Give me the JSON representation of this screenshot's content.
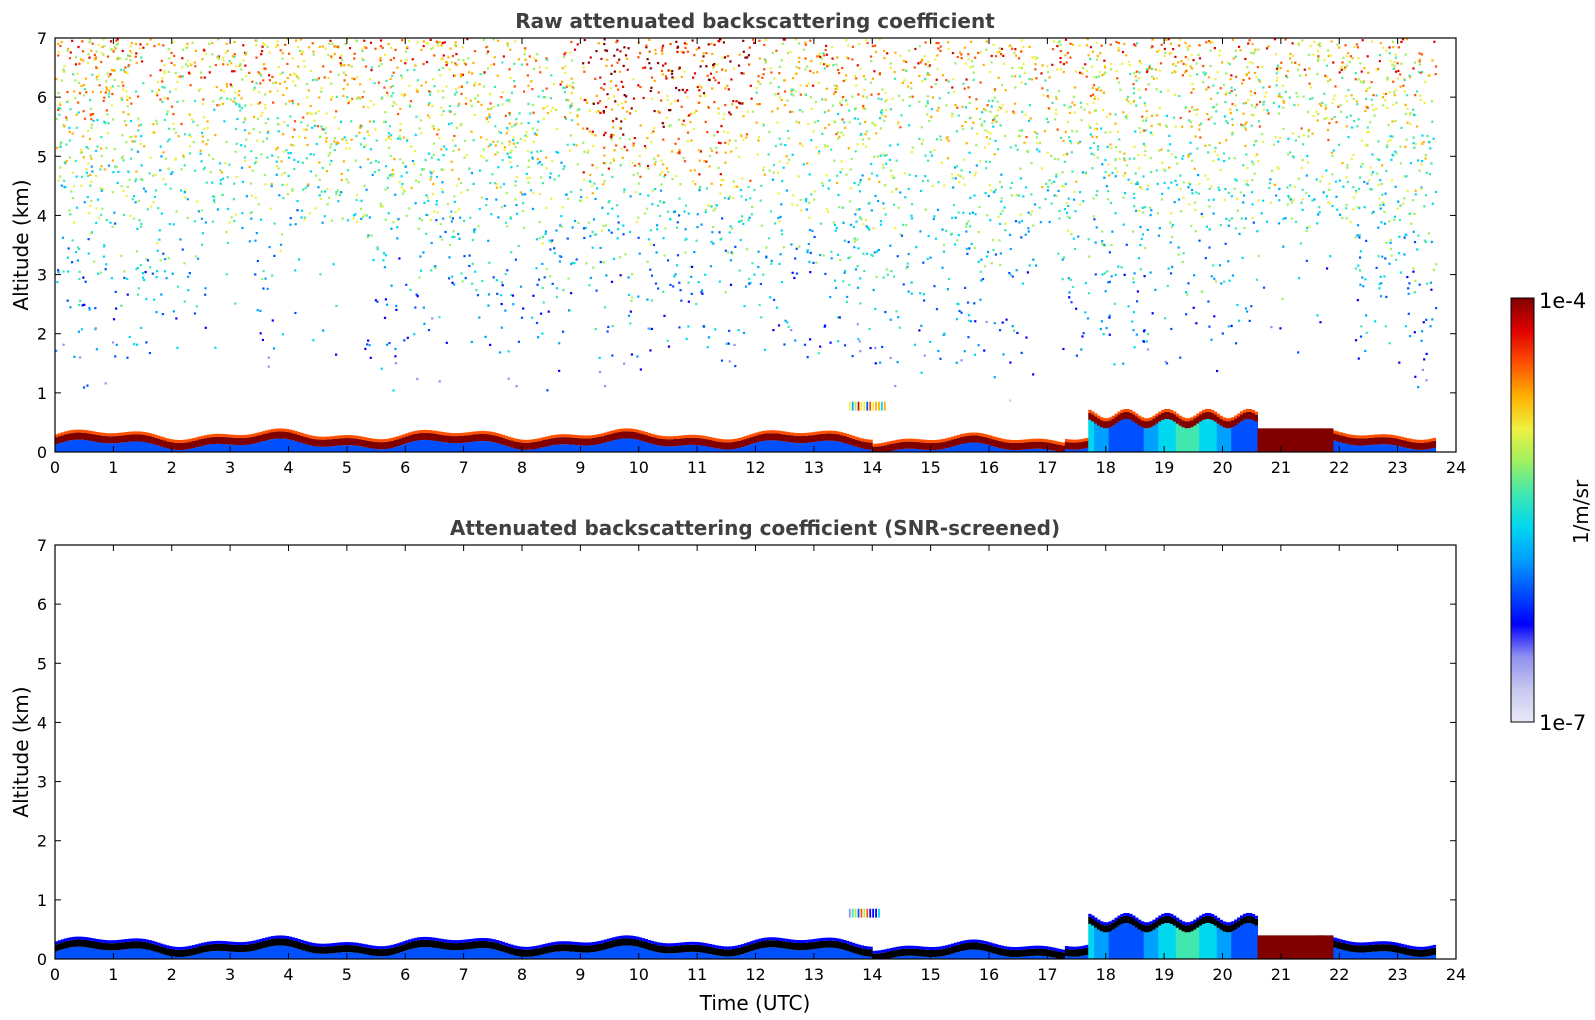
{
  "chart_data": [
    {
      "type": "heatmap",
      "title": "Raw attenuated backscattering coefficient",
      "xlabel": "",
      "ylabel": "Altitude (km)",
      "xlim": [
        0,
        24
      ],
      "ylim": [
        0,
        7
      ],
      "xticks": [
        "0",
        "1",
        "2",
        "3",
        "4",
        "5",
        "6",
        "7",
        "8",
        "9",
        "10",
        "11",
        "12",
        "13",
        "14",
        "15",
        "16",
        "17",
        "18",
        "19",
        "20",
        "21",
        "22",
        "23",
        "24"
      ],
      "yticks": [
        "0",
        "1",
        "2",
        "3",
        "4",
        "5",
        "6",
        "7"
      ],
      "data_end_time": 23.65,
      "features": [
        {
          "name": "boundary_layer",
          "time_range": [
            0,
            23.65
          ],
          "altitude_km": [
            0,
            0.5
          ],
          "level": "high"
        },
        {
          "name": "noise_upper",
          "time_range": [
            0,
            23.65
          ],
          "altitude_km": [
            1,
            7
          ],
          "level": "low-to-mid, increasing with altitude"
        },
        {
          "name": "aerosol_layer",
          "time_range": [
            17.7,
            20.6
          ],
          "altitude_km": [
            0,
            0.8
          ],
          "level": "high"
        },
        {
          "name": "small_cloud",
          "time_range": [
            13.6,
            14.25
          ],
          "altitude_km": [
            0.7,
            0.85
          ],
          "level": "mixed"
        }
      ]
    },
    {
      "type": "heatmap",
      "title": "Attenuated backscattering coefficient (SNR-screened)",
      "xlabel": "Time (UTC)",
      "ylabel": "Altitude (km)",
      "xlim": [
        0,
        24
      ],
      "ylim": [
        0,
        7
      ],
      "xticks": [
        "0",
        "1",
        "2",
        "3",
        "4",
        "5",
        "6",
        "7",
        "8",
        "9",
        "10",
        "11",
        "12",
        "13",
        "14",
        "15",
        "16",
        "17",
        "18",
        "19",
        "20",
        "21",
        "22",
        "23",
        "24"
      ],
      "yticks": [
        "0",
        "1",
        "2",
        "3",
        "4",
        "5",
        "6",
        "7"
      ],
      "data_end_time": 23.65,
      "features": [
        {
          "name": "boundary_layer",
          "time_range": [
            0,
            23.65
          ],
          "altitude_km": [
            0,
            0.5
          ],
          "level": "high"
        },
        {
          "name": "aerosol_layer",
          "time_range": [
            17.7,
            20.6
          ],
          "altitude_km": [
            0,
            0.85
          ],
          "level": "high"
        },
        {
          "name": "small_cloud",
          "time_range": [
            13.6,
            14.15
          ],
          "altitude_km": [
            0.7,
            0.85
          ],
          "level": "mixed"
        }
      ]
    }
  ],
  "colorbar": {
    "label": "1/m/sr",
    "max_label": "1e-4",
    "min_label": "1e-7",
    "colormap": [
      "#e8e8f8",
      "#c8c8f0",
      "#9090f0",
      "#0000ff",
      "#0050ff",
      "#00a0ff",
      "#00d8f0",
      "#40e8b0",
      "#a0f060",
      "#f0f040",
      "#ffb000",
      "#ff5000",
      "#e00000",
      "#800000"
    ]
  }
}
